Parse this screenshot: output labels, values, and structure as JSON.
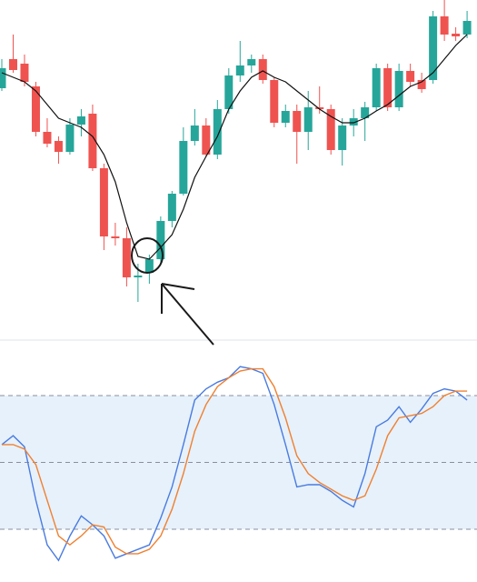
{
  "chart_data": [
    {
      "type": "candlestick",
      "ylim": [
        0,
        370
      ],
      "up_color": "#26a69a",
      "down_color": "#ef5350",
      "open": [
        273,
        305,
        300,
        275,
        225,
        215,
        203,
        233,
        245,
        185,
        110,
        108,
        65,
        70,
        85,
        127,
        157,
        215,
        232,
        200,
        250,
        287,
        298,
        305,
        282,
        235,
        248,
        225,
        252,
        250,
        205,
        232,
        240,
        252,
        295,
        252,
        292,
        282,
        282,
        352,
        333,
        332
      ],
      "close": [
        295,
        293,
        280,
        225,
        212,
        203,
        233,
        242,
        185,
        110,
        108,
        65,
        67,
        85,
        127,
        157,
        215,
        232,
        200,
        250,
        287,
        298,
        305,
        282,
        235,
        248,
        225,
        252,
        250,
        205,
        232,
        240,
        252,
        295,
        252,
        292,
        280,
        272,
        352,
        332,
        330,
        347
      ],
      "high": [
        305,
        332,
        310,
        280,
        240,
        220,
        240,
        250,
        255,
        190,
        125,
        120,
        80,
        90,
        132,
        160,
        230,
        250,
        240,
        260,
        295,
        325,
        310,
        310,
        285,
        255,
        255,
        270,
        275,
        255,
        240,
        250,
        258,
        300,
        300,
        300,
        300,
        290,
        358,
        370,
        340,
        358
      ],
      "low": [
        270,
        290,
        275,
        220,
        208,
        190,
        200,
        220,
        182,
        95,
        100,
        55,
        38,
        58,
        80,
        120,
        155,
        210,
        198,
        195,
        245,
        280,
        290,
        278,
        230,
        230,
        190,
        205,
        245,
        200,
        188,
        220,
        215,
        248,
        248,
        248,
        275,
        268,
        278,
        325,
        325,
        328
      ],
      "lines": [
        {
          "color": "#111111",
          "values": [
            290,
            285,
            280,
            270,
            255,
            240,
            235,
            230,
            220,
            200,
            170,
            125,
            88,
            85,
            98,
            112,
            140,
            175,
            198,
            220,
            250,
            270,
            285,
            292,
            285,
            280,
            270,
            260,
            250,
            242,
            235,
            235,
            240,
            248,
            255,
            265,
            275,
            280,
            290,
            305,
            320,
            332
          ]
        }
      ]
    },
    {
      "type": "line",
      "ylim": [
        0,
        100
      ],
      "levels": [
        20,
        50,
        80
      ],
      "band_color": "#e6f1fb",
      "series": [
        {
          "color": "#4a7be0",
          "values": [
            58,
            62,
            57,
            33,
            13,
            6,
            17,
            26,
            22,
            17,
            7,
            9,
            11,
            13,
            25,
            39,
            58,
            78,
            83,
            86,
            88,
            93,
            92,
            90,
            76,
            58,
            39,
            40,
            40,
            37,
            33,
            30,
            45,
            66,
            69,
            75,
            68,
            74,
            81,
            83,
            82,
            78
          ]
        },
        {
          "color": "#f08030",
          "values": [
            58,
            58,
            56,
            49,
            33,
            17,
            13,
            17,
            22,
            21,
            12,
            9,
            9,
            11,
            17,
            29,
            45,
            64,
            76,
            84,
            88,
            91,
            92,
            92,
            84,
            70,
            53,
            45,
            41,
            38,
            35,
            33,
            35,
            47,
            62,
            70,
            71,
            72,
            75,
            80,
            82,
            82
          ]
        }
      ]
    }
  ]
}
